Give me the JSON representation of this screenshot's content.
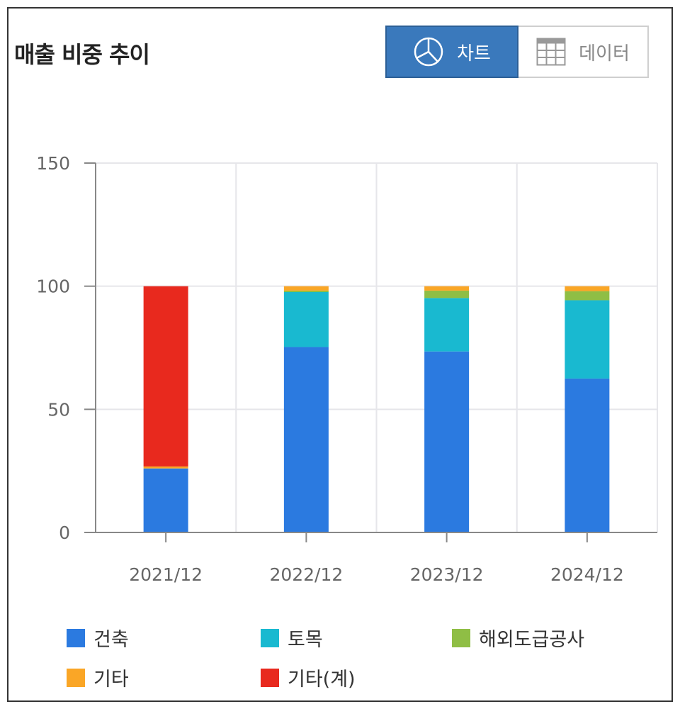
{
  "header": {
    "title": "매출 비중 추이",
    "toggle": {
      "chart_label": "차트",
      "data_label": "데이터",
      "selected": "chart"
    }
  },
  "chart_data": {
    "type": "bar",
    "stacked": true,
    "title": "매출 비중 추이",
    "categories": [
      "2021/12",
      "2022/12",
      "2023/12",
      "2024/12"
    ],
    "ylim": [
      0,
      150
    ],
    "yticks": [
      0,
      50,
      100,
      150
    ],
    "grid": true,
    "legend_position": "bottom",
    "series": [
      {
        "name": "건축",
        "color": "#2b7ae0",
        "values": [
          26.0,
          75.3,
          73.5,
          62.5
        ]
      },
      {
        "name": "토목",
        "color": "#19b9d0",
        "values": [
          0,
          22.3,
          21.7,
          31.8
        ]
      },
      {
        "name": "해외도급공사",
        "color": "#8fbe45",
        "values": [
          0,
          0.6,
          3.0,
          3.7
        ]
      },
      {
        "name": "기타",
        "color": "#faa626",
        "values": [
          0.8,
          1.8,
          1.8,
          2.0
        ]
      },
      {
        "name": "기타(계)",
        "color": "#e8291e",
        "values": [
          73.2,
          0,
          0,
          0
        ]
      }
    ]
  }
}
